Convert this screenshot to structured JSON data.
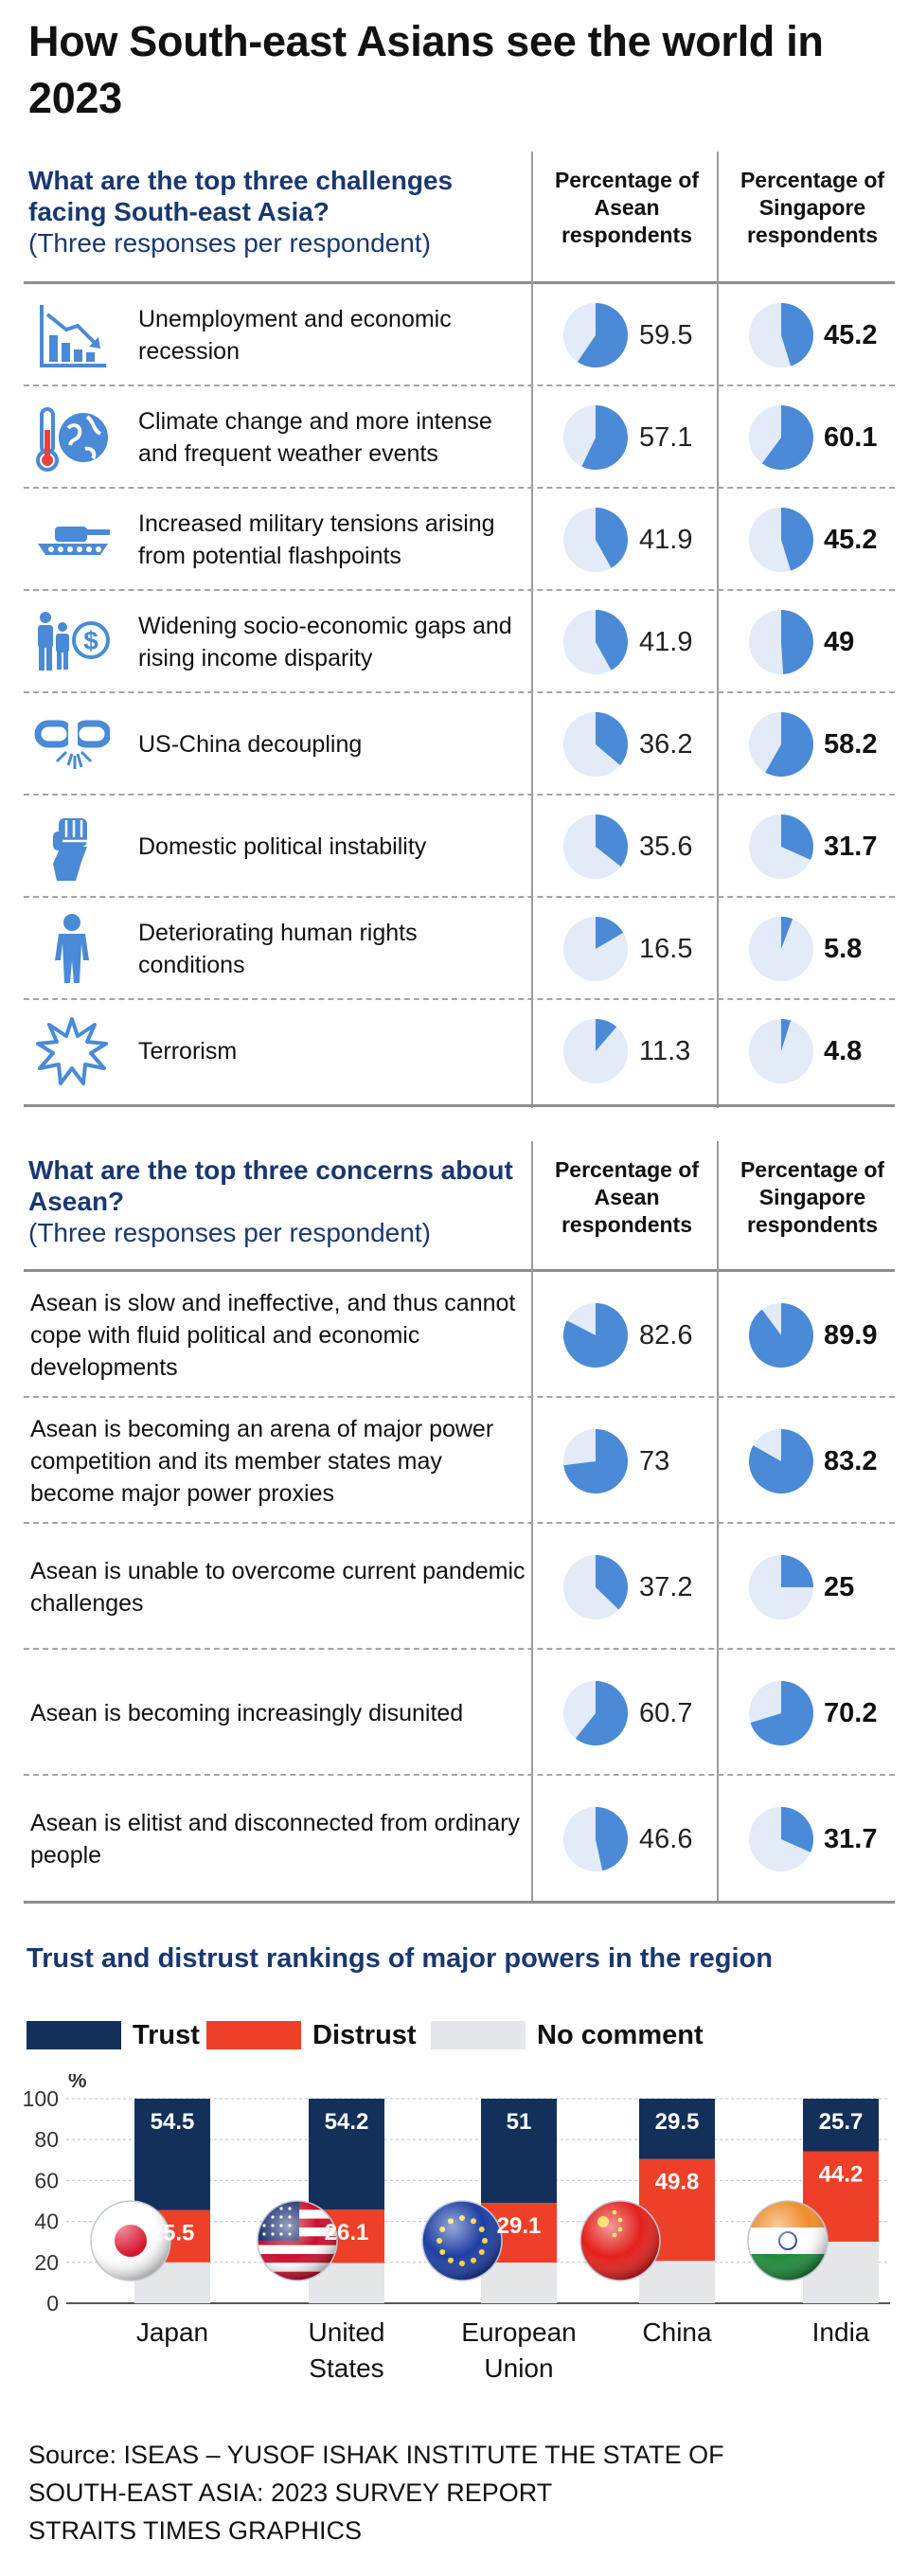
{
  "title": "How South-east Asians see the world in 2023",
  "section1": {
    "question": "What are the top three challenges facing South-east Asia?",
    "sub": "(Three responses per respondent)",
    "col_asean": "Percentage of Asean respondents",
    "col_sg": "Percentage of Singapore respondents",
    "rows": [
      {
        "label": "Unemployment and economic recession",
        "asean": 59.5,
        "sg": 45.2,
        "asean_text": "59.5",
        "sg_text": "45.2",
        "icon": "chart-decline-icon"
      },
      {
        "label": "Climate change and more intense and frequent weather events",
        "asean": 57.1,
        "sg": 60.1,
        "asean_text": "57.1",
        "sg_text": "60.1",
        "icon": "thermometer-globe-icon"
      },
      {
        "label": "Increased military tensions arising from potential flashpoints",
        "asean": 41.9,
        "sg": 45.2,
        "asean_text": "41.9",
        "sg_text": "45.2",
        "icon": "tank-icon"
      },
      {
        "label": "Widening socio-economic gaps and rising income disparity",
        "asean": 41.9,
        "sg": 49,
        "asean_text": "41.9",
        "sg_text": "49",
        "icon": "people-dollar-icon"
      },
      {
        "label": "US-China decoupling",
        "asean": 36.2,
        "sg": 58.2,
        "asean_text": "36.2",
        "sg_text": "58.2",
        "icon": "broken-chain-icon"
      },
      {
        "label": "Domestic political instability",
        "asean": 35.6,
        "sg": 31.7,
        "asean_text": "35.6",
        "sg_text": "31.7",
        "icon": "raised-fist-icon"
      },
      {
        "label": "Deteriorating human rights conditions",
        "asean": 16.5,
        "sg": 5.8,
        "asean_text": "16.5",
        "sg_text": "5.8",
        "icon": "person-icon"
      },
      {
        "label": "Terrorism",
        "asean": 11.3,
        "sg": 4.8,
        "asean_text": "11.3",
        "sg_text": "4.8",
        "icon": "explosion-icon"
      }
    ]
  },
  "section2": {
    "question": "What are the top three concerns about Asean?",
    "sub": "(Three responses per respondent)",
    "col_asean": "Percentage of Asean respondents",
    "col_sg": "Percentage of Singapore respondents",
    "rows": [
      {
        "label": "Asean is slow and ineffective, and thus cannot cope with fluid political and economic developments",
        "asean": 82.6,
        "sg": 89.9,
        "asean_text": "82.6",
        "sg_text": "89.9"
      },
      {
        "label": "Asean is becoming an arena of major power competition and its member states may become major power proxies",
        "asean": 73,
        "sg": 83.2,
        "asean_text": "73",
        "sg_text": "83.2"
      },
      {
        "label": "Asean is unable to overcome current pandemic challenges",
        "asean": 37.2,
        "sg": 25,
        "asean_text": "37.2",
        "sg_text": "25"
      },
      {
        "label": "Asean is becoming increasingly disunited",
        "asean": 60.7,
        "sg": 70.2,
        "asean_text": "60.7",
        "sg_text": "70.2"
      },
      {
        "label": "Asean is elitist and disconnected from ordinary people",
        "asean": 46.6,
        "sg": 31.7,
        "asean_text": "46.6",
        "sg_text": "31.7"
      }
    ]
  },
  "trust": {
    "title": "Trust and distrust rankings of major powers in the region",
    "legend": {
      "trust": "Trust",
      "distrust": "Distrust",
      "no_comment": "No comment"
    },
    "unit": "%"
  },
  "colors": {
    "pie_fill": "#4a8ad6",
    "pie_bg": "#e2ebf7",
    "trust": "#13305a",
    "distrust": "#ee4028",
    "no_comment": "#e4e6ea",
    "icon": "#4a8ad6"
  },
  "chart_data": {
    "type": "bar",
    "stacked": true,
    "categories": [
      "Japan",
      "United States",
      "European Union",
      "China",
      "India"
    ],
    "series": [
      {
        "name": "Trust",
        "values": [
          54.5,
          54.2,
          51,
          29.5,
          25.7
        ]
      },
      {
        "name": "Distrust",
        "values": [
          25.5,
          26.1,
          29.1,
          49.8,
          44.2
        ]
      },
      {
        "name": "No comment",
        "values": [
          20,
          19.7,
          19.9,
          20.7,
          30.1
        ]
      }
    ],
    "data_labels": {
      "Trust": [
        "54.5",
        "54.2",
        "51",
        "29.5",
        "25.7"
      ],
      "Distrust": [
        "25.5",
        "26.1",
        "29.1",
        "49.8",
        "44.2"
      ]
    },
    "category_labels": [
      [
        "Japan"
      ],
      [
        "United",
        "States"
      ],
      [
        "European",
        "Union"
      ],
      [
        "China"
      ],
      [
        "India"
      ]
    ],
    "yticks": [
      0,
      20,
      40,
      60,
      80,
      100
    ],
    "ylim": [
      0,
      100
    ],
    "ylabel": "%",
    "title": "Trust and distrust rankings of major powers in the region",
    "legend": "top"
  },
  "source": [
    "Source: ISEAS – YUSOF ISHAK INSTITUTE THE STATE OF",
    "SOUTH-EAST ASIA: 2023 SURVEY REPORT",
    "STRAITS TIMES GRAPHICS"
  ]
}
